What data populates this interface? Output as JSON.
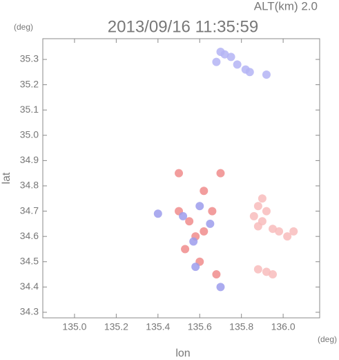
{
  "chart_data": {
    "type": "scatter",
    "title": "2013/09/16 11:35:59",
    "subtitle": "ALT(km) 2.0",
    "y_unit": "(deg)",
    "x_unit": "(deg)",
    "x_label": "lon",
    "y_label": "lat",
    "xlim": [
      134.848,
      136.175
    ],
    "ylim": [
      34.278,
      35.382
    ],
    "xticks": [
      {
        "value": 135,
        "label": "135.0"
      },
      135.2,
      135.4,
      135.6,
      135.8,
      {
        "value": 136,
        "label": "136.0"
      }
    ],
    "yticks": [
      34.3,
      34.4,
      34.5,
      34.6,
      34.7,
      34.8,
      34.9,
      {
        "value": 35,
        "label": "35.0"
      },
      35.1,
      35.2,
      35.3
    ],
    "series": [
      {
        "color": "#b4b4f4",
        "x": [
          135.7,
          135.72,
          135.75,
          135.68,
          135.78,
          135.82,
          135.84,
          135.92
        ],
        "values": [
          35.33,
          35.32,
          35.31,
          35.29,
          35.28,
          35.26,
          35.25,
          35.24
        ]
      },
      {
        "color": "#f8bcbc",
        "x": [
          135.86,
          135.88,
          135.9,
          135.92,
          135.95,
          135.98,
          136.02,
          136.05,
          135.9,
          135.88,
          135.88,
          135.92,
          135.95
        ],
        "values": [
          34.68,
          34.72,
          34.66,
          34.7,
          34.63,
          34.62,
          34.6,
          34.62,
          34.75,
          34.64,
          34.47,
          34.46,
          34.45
        ]
      },
      {
        "color": "#f08c8c",
        "x": [
          135.5,
          135.55,
          135.58,
          135.53,
          135.62,
          135.66,
          135.6,
          135.68,
          135.62,
          135.5,
          135.7
        ],
        "values": [
          34.7,
          34.66,
          34.6,
          34.55,
          34.62,
          34.7,
          34.5,
          34.45,
          34.78,
          34.85,
          34.85
        ]
      },
      {
        "color": "#9c9cec",
        "x": [
          135.52,
          135.57,
          135.6,
          135.65,
          135.58,
          135.7,
          135.4
        ],
        "values": [
          34.68,
          34.58,
          34.72,
          34.65,
          34.48,
          34.4,
          34.69
        ]
      }
    ]
  }
}
